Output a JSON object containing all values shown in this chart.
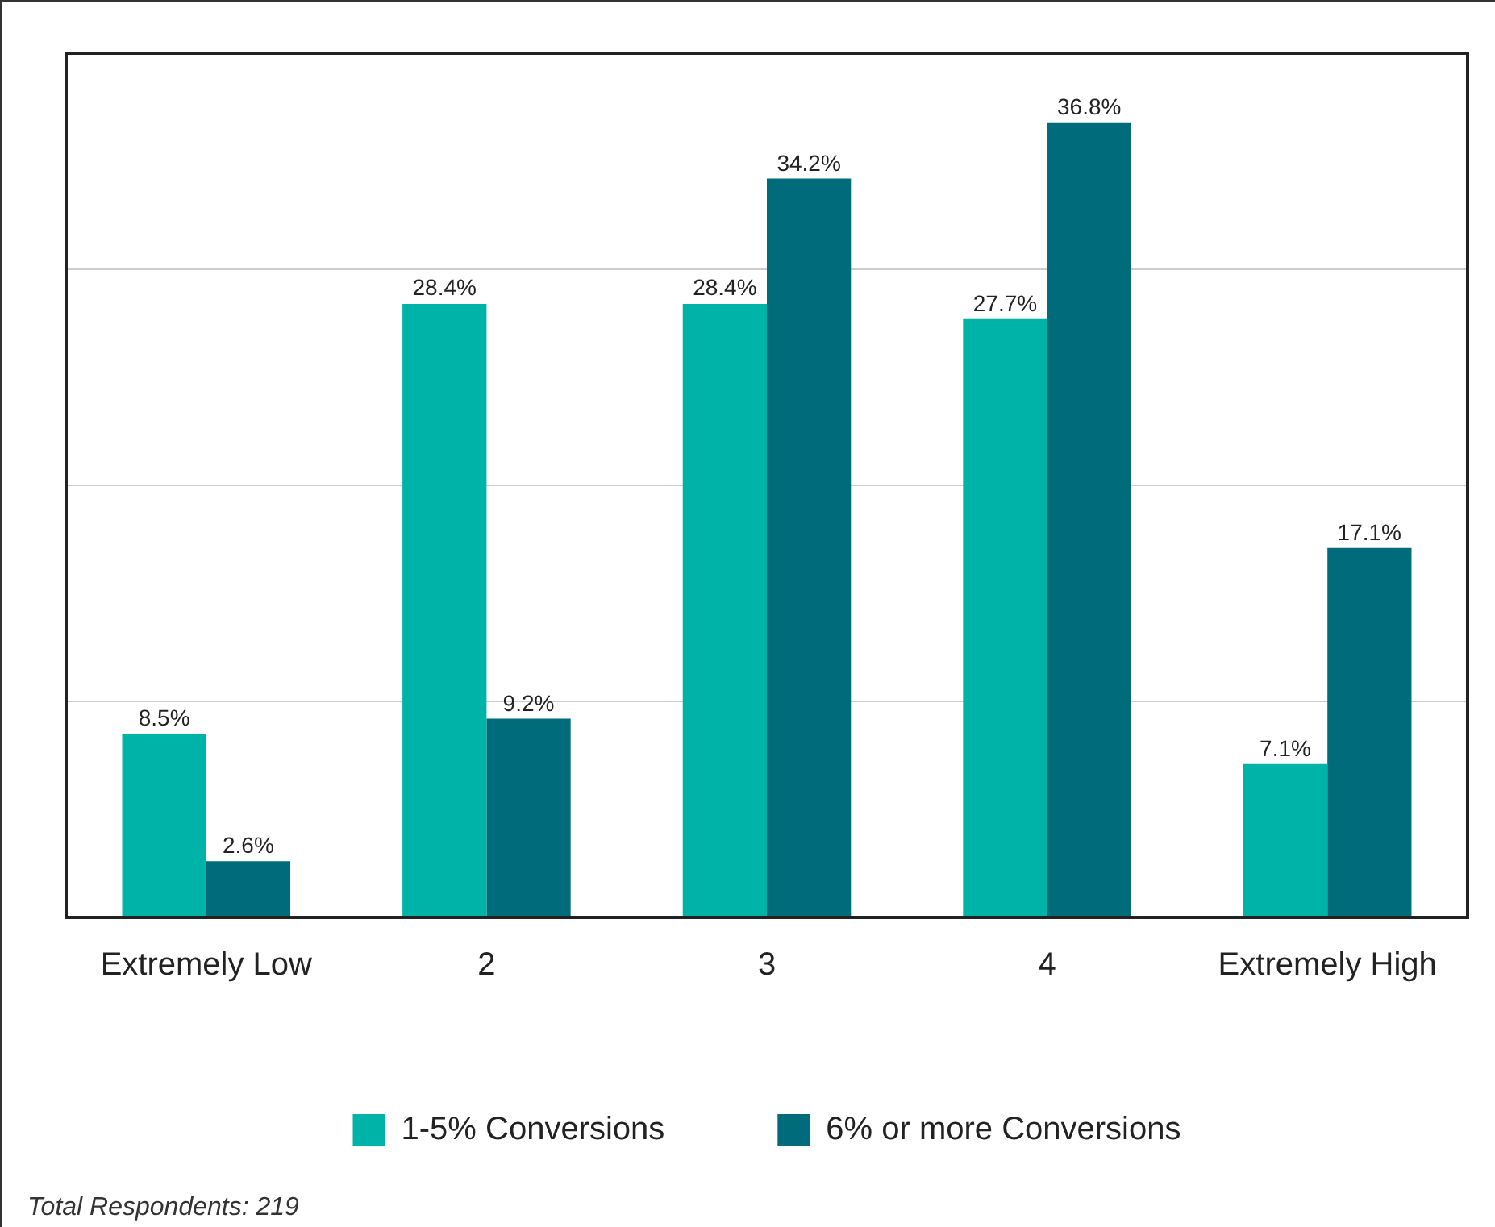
{
  "chart_data": {
    "type": "bar",
    "categories": [
      "Extremely Low",
      "2",
      "3",
      "4",
      "Extremely High"
    ],
    "series": [
      {
        "name": "1-5% Conversions",
        "color": "#00b3a9",
        "values": [
          8.5,
          28.4,
          28.4,
          27.7,
          7.1
        ],
        "value_labels": [
          "8.5%",
          "28.4%",
          "28.4%",
          "27.7%",
          "7.1%"
        ]
      },
      {
        "name": "6% or more Conversions",
        "color": "#006b7b",
        "values": [
          2.6,
          9.2,
          34.2,
          36.8,
          17.1
        ],
        "value_labels": [
          "2.6%",
          "9.2%",
          "34.2%",
          "36.8%",
          "17.1%"
        ]
      }
    ],
    "ylim": [
      0,
      40
    ],
    "yticks": [
      {
        "value": 0,
        "label": null
      },
      {
        "value": 10,
        "label": null
      },
      {
        "value": 20,
        "label": null
      },
      {
        "value": 30,
        "label": null
      },
      {
        "value": 40,
        "label": null
      }
    ],
    "tick_labels": "x",
    "grid": "y",
    "legend": "bottom",
    "annotations": [
      "Total Respondents: 219"
    ]
  }
}
